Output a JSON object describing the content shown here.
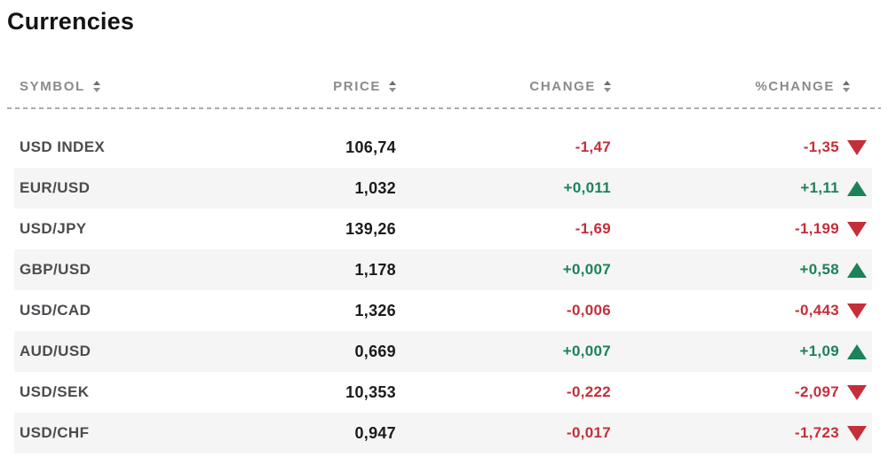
{
  "page": {
    "title": "Currencies"
  },
  "colors": {
    "positive_green": "#1c8259",
    "negative_red": "#c52f3a",
    "row_stripe": "#f5f5f5",
    "header_text": "#8b8b8b"
  },
  "icons": {
    "sort": "sort-arrows-icon",
    "up": "triangle-up-icon",
    "down": "triangle-down-icon"
  },
  "table": {
    "columns": [
      {
        "key": "symbol",
        "label": "SYMBOL"
      },
      {
        "key": "price",
        "label": "PRICE"
      },
      {
        "key": "change",
        "label": "CHANGE"
      },
      {
        "key": "pct_change",
        "label": "%CHANGE"
      }
    ],
    "rows": [
      {
        "symbol": "USD INDEX",
        "price": "106,74",
        "change": "-1,47",
        "pct_change": "-1,35",
        "direction": "down"
      },
      {
        "symbol": "EUR/USD",
        "price": "1,032",
        "change": "+0,011",
        "pct_change": "+1,11",
        "direction": "up"
      },
      {
        "symbol": "USD/JPY",
        "price": "139,26",
        "change": "-1,69",
        "pct_change": "-1,199",
        "direction": "down"
      },
      {
        "symbol": "GBP/USD",
        "price": "1,178",
        "change": "+0,007",
        "pct_change": "+0,58",
        "direction": "up"
      },
      {
        "symbol": "USD/CAD",
        "price": "1,326",
        "change": "-0,006",
        "pct_change": "-0,443",
        "direction": "down"
      },
      {
        "symbol": "AUD/USD",
        "price": "0,669",
        "change": "+0,007",
        "pct_change": "+1,09",
        "direction": "up"
      },
      {
        "symbol": "USD/SEK",
        "price": "10,353",
        "change": "-0,222",
        "pct_change": "-2,097",
        "direction": "down"
      },
      {
        "symbol": "USD/CHF",
        "price": "0,947",
        "change": "-0,017",
        "pct_change": "-1,723",
        "direction": "down"
      }
    ]
  },
  "chart_data": {
    "type": "table",
    "title": "Currencies",
    "columns": [
      "SYMBOL",
      "PRICE",
      "CHANGE",
      "%CHANGE"
    ],
    "rows": [
      [
        "USD INDEX",
        "106,74",
        "-1,47",
        "-1,35 down"
      ],
      [
        "EUR/USD",
        "1,032",
        "+0,011",
        "+1,11 up"
      ],
      [
        "USD/JPY",
        "139,26",
        "-1,69",
        "-1,199 down"
      ],
      [
        "GBP/USD",
        "1,178",
        "+0,007",
        "+0,58 up"
      ],
      [
        "USD/CAD",
        "1,326",
        "-0,006",
        "-0,443 down"
      ],
      [
        "AUD/USD",
        "0,669",
        "+0,007",
        "+1,09 up"
      ],
      [
        "USD/SEK",
        "10,353",
        "-0,222",
        "-2,097 down"
      ],
      [
        "USD/CHF",
        "0,947",
        "-0,017",
        "-1,723 down"
      ]
    ]
  }
}
